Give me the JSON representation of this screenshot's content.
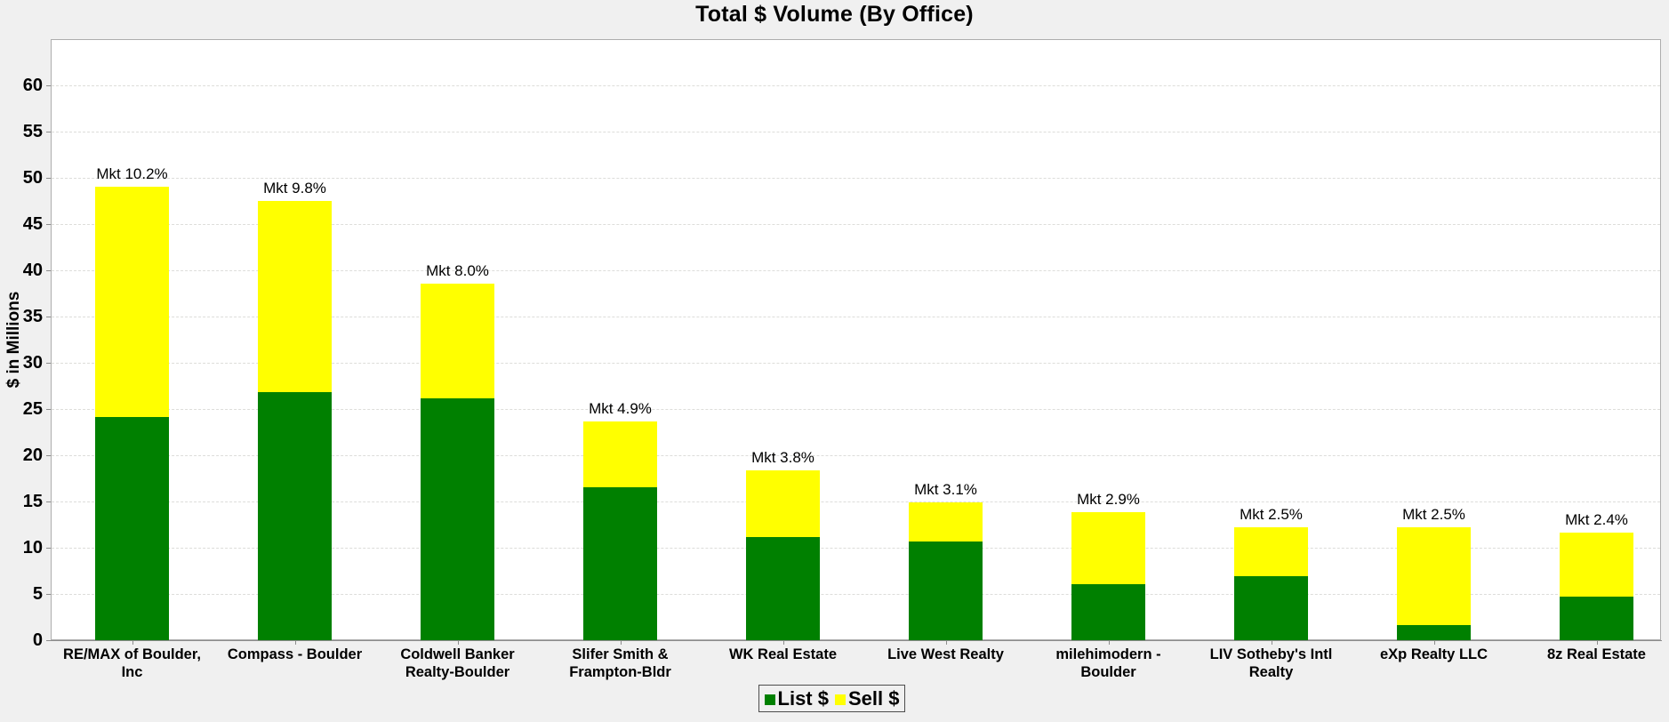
{
  "title": "Total $ Volume (By Office)",
  "y_axis": {
    "title": "$ in Millions",
    "tick_values": [
      0,
      5,
      10,
      15,
      20,
      25,
      30,
      35,
      40,
      45,
      50,
      55,
      60
    ]
  },
  "legend": {
    "items": [
      {
        "label": "List $",
        "color": "#008000"
      },
      {
        "label": "Sell $",
        "color": "#ffff00"
      }
    ]
  },
  "colors": {
    "list_green": "#008000",
    "sell_yellow": "#ffff00",
    "page_background": "#f0f0f0",
    "plot_background": "#ffffff",
    "plot_border": "#adadad",
    "gridline": "#ddddda"
  },
  "chart_data": {
    "type": "bar",
    "stacked": true,
    "title": "Total $ Volume (By Office)",
    "xlabel": "",
    "ylabel": "$ in Millions",
    "ylim": [
      0,
      65
    ],
    "ytick_interval": 5,
    "grid": "horizontal dashed",
    "legend_position": "bottom center",
    "categories": [
      "RE/MAX of Boulder, Inc",
      "Compass - Boulder",
      "Coldwell Banker Realty-Boulder",
      "Slifer Smith & Frampton-Bldr",
      "WK Real Estate",
      "Live West Realty",
      "milehimodern - Boulder",
      "LIV Sotheby's Intl Realty",
      "eXp Realty LLC",
      "8z Real Estate"
    ],
    "series": [
      {
        "name": "List $",
        "color": "#008000",
        "values": [
          24.1,
          26.8,
          26.2,
          16.5,
          11.2,
          10.7,
          6.1,
          6.9,
          1.6,
          4.7
        ]
      },
      {
        "name": "Sell $",
        "color": "#ffff00",
        "values": [
          24.9,
          20.7,
          12.4,
          7.2,
          7.2,
          4.2,
          7.7,
          5.3,
          10.6,
          6.9
        ]
      }
    ],
    "totals": [
      49.0,
      47.5,
      38.6,
      23.7,
      18.4,
      14.9,
      13.8,
      12.2,
      12.2,
      11.6
    ],
    "bar_labels": [
      "Mkt 10.2%",
      "Mkt 9.8%",
      "Mkt 8.0%",
      "Mkt 4.9%",
      "Mkt 3.8%",
      "Mkt 3.1%",
      "Mkt 2.9%",
      "Mkt 2.5%",
      "Mkt 2.5%",
      "Mkt 2.4%"
    ]
  }
}
